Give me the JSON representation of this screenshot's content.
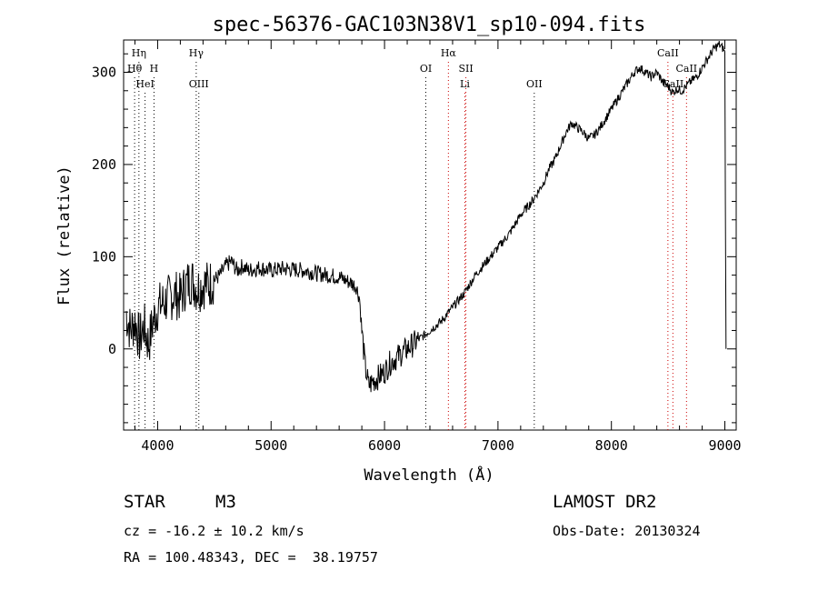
{
  "chart_data": {
    "type": "line",
    "title": "spec-56376-GAC103N38V1_sp10-094.fits",
    "xlabel": "Wavelength (Å)",
    "ylabel": "Flux (relative)",
    "xlim": [
      3700,
      9100
    ],
    "ylim": [
      -88,
      335
    ],
    "x_ticks": [
      4000,
      5000,
      6000,
      7000,
      8000,
      9000
    ],
    "x_tick_labels": [
      "4000",
      "5000",
      "6000",
      "7000",
      "8000",
      "9000"
    ],
    "y_ticks": [
      0,
      100,
      200,
      300
    ],
    "y_tick_labels": [
      "0",
      "100",
      "200",
      "300"
    ],
    "series": [
      {
        "x": [
          3720,
          3760,
          3800,
          3840,
          3880,
          3920,
          3960,
          4000,
          4050,
          4100,
          4150,
          4200,
          4250,
          4300,
          4350,
          4400,
          4450,
          4500,
          4550,
          4600,
          4650,
          4700,
          4750,
          4800,
          4900,
          5000,
          5100,
          5200,
          5300,
          5400,
          5500,
          5600,
          5650,
          5700,
          5750,
          5780,
          5800,
          5830,
          5860,
          5900,
          5950,
          6000,
          6050,
          6100,
          6200,
          6300,
          6400,
          6500,
          6600,
          6700,
          6800,
          6900,
          7000,
          7100,
          7200,
          7300,
          7400,
          7450,
          7500,
          7550,
          7600,
          7650,
          7700,
          7750,
          7800,
          7850,
          7900,
          8000,
          8100,
          8150,
          8200,
          8250,
          8300,
          8350,
          8400,
          8450,
          8500,
          8540,
          8580,
          8620,
          8660,
          8700,
          8750,
          8800,
          8850,
          8900,
          8950,
          8990,
          9000,
          9010
        ],
        "y": [
          40,
          20,
          30,
          10,
          25,
          5,
          30,
          45,
          50,
          55,
          60,
          55,
          70,
          75,
          65,
          70,
          70,
          75,
          80,
          90,
          95,
          85,
          90,
          85,
          88,
          85,
          87,
          86,
          85,
          82,
          80,
          78,
          75,
          72,
          68,
          55,
          20,
          -20,
          -40,
          -35,
          -30,
          -25,
          -15,
          -10,
          0,
          10,
          20,
          30,
          45,
          60,
          80,
          95,
          110,
          125,
          145,
          160,
          180,
          195,
          205,
          220,
          235,
          245,
          240,
          235,
          228,
          232,
          240,
          260,
          280,
          290,
          300,
          305,
          300,
          295,
          300,
          290,
          285,
          278,
          282,
          280,
          285,
          290,
          295,
          305,
          315,
          325,
          330,
          325,
          320,
          0
        ]
      }
    ],
    "line_markers": [
      {
        "label": "Hη",
        "x": 3835,
        "row": 1,
        "color": "#000000"
      },
      {
        "label": "Hθ",
        "x": 3797,
        "row": 2,
        "color": "#000000"
      },
      {
        "label": "H",
        "x": 3968,
        "row": 2,
        "color": "#000000"
      },
      {
        "label": "HeI",
        "x": 3889,
        "row": 3,
        "color": "#000000"
      },
      {
        "label": "Hγ",
        "x": 4340,
        "row": 1,
        "color": "#000000"
      },
      {
        "label": "OIII",
        "x": 4363,
        "row": 3,
        "color": "#000000"
      },
      {
        "label": "OI",
        "x": 6364,
        "row": 2,
        "color": "#000000"
      },
      {
        "label": "Hα",
        "x": 6563,
        "row": 1,
        "color": "#cc0000"
      },
      {
        "label": "SII",
        "x": 6717,
        "row": 2,
        "color": "#cc0000"
      },
      {
        "label": "Li",
        "x": 6708,
        "row": 3,
        "color": "#cc0000"
      },
      {
        "label": "OII",
        "x": 7320,
        "row": 3,
        "color": "#000000"
      },
      {
        "label": "CaII",
        "x": 8498,
        "row": 1,
        "color": "#cc0000"
      },
      {
        "label": "CaII",
        "x": 8662,
        "row": 2,
        "color": "#cc0000"
      },
      {
        "label": "CaII",
        "x": 8542,
        "row": 3,
        "color": "#cc0000"
      }
    ]
  },
  "info": {
    "object_type": "STAR",
    "subclass": "M3",
    "survey": "LAMOST DR2",
    "velocity": "cz = -16.2 ± 10.2 km/s",
    "obs_date": "Obs-Date: 20130324",
    "coords": "RA = 100.48343, DEC =  38.19757"
  }
}
